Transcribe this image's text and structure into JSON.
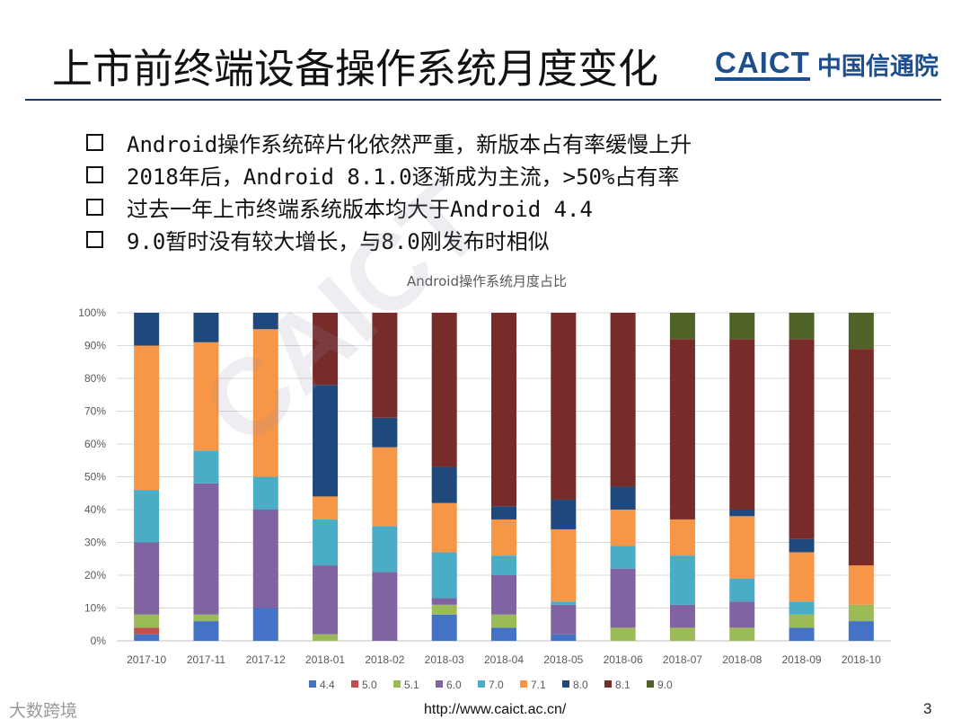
{
  "slide": {
    "title": "上市前终端设备操作系统月度变化",
    "logo_latin": "CAICT",
    "logo_cn": "中国信通院",
    "bullets": [
      "Android操作系统碎片化依然严重，新版本占有率缓慢上升",
      "2018年后，Android 8.1.0逐渐成为主流，>50%占有率",
      "过去一年上市终端系统版本均大于Android 4.4",
      "9.0暂时没有较大增长，与8.0刚发布时相似"
    ],
    "footer_brand": "大数跨境",
    "footer_url": "http://www.caict.ac.cn/",
    "page_number": "3"
  },
  "chart_data": {
    "type": "bar",
    "stacked": true,
    "normalized": true,
    "title": "Android操作系统月度占比",
    "xlabel": "",
    "ylabel": "",
    "ylim": [
      0,
      100
    ],
    "y_ticks": [
      "0%",
      "10%",
      "20%",
      "30%",
      "40%",
      "50%",
      "60%",
      "70%",
      "80%",
      "90%",
      "100%"
    ],
    "grid": true,
    "legend_position": "bottom",
    "categories": [
      "2017-10",
      "2017-11",
      "2017-12",
      "2018-01",
      "2018-02",
      "2018-03",
      "2018-04",
      "2018-05",
      "2018-06",
      "2018-07",
      "2018-08",
      "2018-09",
      "2018-10"
    ],
    "series": [
      {
        "name": "4.4",
        "color": "#4472c4",
        "values": [
          2,
          6,
          10,
          0,
          0,
          8,
          4,
          2,
          0,
          0,
          0,
          4,
          6
        ]
      },
      {
        "name": "5.0",
        "color": "#c0504d",
        "values": [
          2,
          0,
          0,
          0,
          0,
          0,
          0,
          0,
          0,
          0,
          0,
          0,
          0
        ]
      },
      {
        "name": "5.1",
        "color": "#9bbb59",
        "values": [
          4,
          2,
          0,
          2,
          0,
          3,
          4,
          0,
          4,
          4,
          4,
          4,
          5
        ]
      },
      {
        "name": "6.0",
        "color": "#8064a2",
        "values": [
          22,
          40,
          30,
          21,
          21,
          2,
          12,
          9,
          18,
          7,
          8,
          0,
          0
        ]
      },
      {
        "name": "7.0",
        "color": "#4bacc6",
        "values": [
          16,
          10,
          10,
          14,
          14,
          14,
          6,
          1,
          7,
          15,
          7,
          4,
          0
        ]
      },
      {
        "name": "7.1",
        "color": "#f79646",
        "values": [
          44,
          33,
          45,
          7,
          24,
          15,
          11,
          22,
          11,
          11,
          19,
          15,
          12
        ]
      },
      {
        "name": "8.0",
        "color": "#1f497d",
        "values": [
          10,
          9,
          5,
          34,
          9,
          11,
          4,
          9,
          7,
          0,
          2,
          4,
          0
        ]
      },
      {
        "name": "8.1",
        "color": "#772c2a",
        "values": [
          0,
          0,
          0,
          22,
          32,
          47,
          59,
          57,
          53,
          55,
          52,
          61,
          66
        ]
      },
      {
        "name": "9.0",
        "color": "#4f6228",
        "values": [
          0,
          0,
          0,
          0,
          0,
          0,
          0,
          0,
          0,
          8,
          8,
          8,
          11
        ]
      }
    ]
  }
}
